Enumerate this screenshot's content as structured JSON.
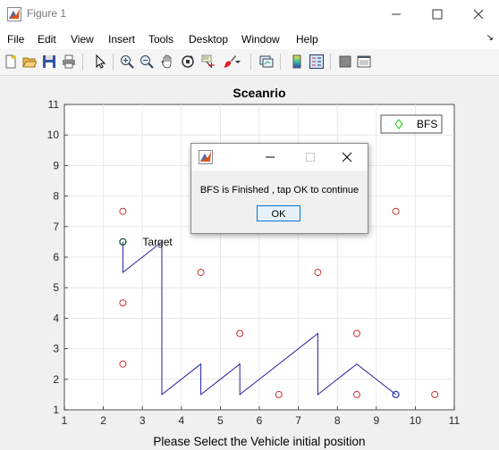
{
  "window": {
    "title": "Figure 1"
  },
  "menu": {
    "items": [
      "File",
      "Edit",
      "View",
      "Insert",
      "Tools",
      "Desktop",
      "Window",
      "Help"
    ],
    "overflow_icon": "chevron-icon"
  },
  "toolbar": {
    "icons": [
      "new-figure-icon",
      "open-file-icon",
      "save-icon",
      "print-icon",
      "pointer-icon",
      "zoom-in-icon",
      "zoom-out-icon",
      "pan-icon",
      "rotate-3d-icon",
      "data-cursor-icon",
      "brush-icon",
      "link-plot-icon",
      "colorbar-icon",
      "legend-icon",
      "hide-plot-tools-icon",
      "show-plot-tools-icon"
    ]
  },
  "chart_data": {
    "type": "scatter",
    "title": "Sceanrio",
    "xlabel": "Please Select the Vehicle initial position",
    "ylabel": "",
    "xlim": [
      1,
      11
    ],
    "ylim": [
      1,
      11
    ],
    "xticks": [
      1,
      2,
      3,
      4,
      5,
      6,
      7,
      8,
      9,
      10,
      11
    ],
    "yticks": [
      1,
      2,
      3,
      4,
      5,
      6,
      7,
      8,
      9,
      10,
      11
    ],
    "grid": true,
    "legend": {
      "entries": [
        "BFS"
      ],
      "location": "top-right"
    },
    "obstacles": {
      "x": [
        2.5,
        2.5,
        2.5,
        4.5,
        5.5,
        6.5,
        7.5,
        8.5,
        8.5,
        9.5,
        10.5
      ],
      "y": [
        7.5,
        4.5,
        2.5,
        5.5,
        3.5,
        1.5,
        5.5,
        3.5,
        1.5,
        7.5,
        1.5
      ],
      "color": "#cc3333"
    },
    "path": {
      "name": "BFS",
      "x": [
        2.5,
        2.5,
        3.5,
        3.5,
        4.5,
        4.5,
        5.5,
        5.5,
        7.5,
        7.5,
        8.5,
        9.5
      ],
      "y": [
        6.5,
        5.5,
        6.5,
        1.5,
        2.5,
        1.5,
        2.5,
        1.5,
        3.5,
        1.5,
        2.5,
        1.5
      ],
      "color": "#2020a0"
    },
    "target": {
      "x": 2.5,
      "y": 6.5,
      "label": "Target",
      "color": "#1a5c2a"
    },
    "vehicle": {
      "x": 9.5,
      "y": 1.5,
      "color": "#3344aa"
    },
    "legend_marker_color": "#00cc00"
  },
  "dialog": {
    "message": "BFS is Finished , tap OK to continue",
    "ok_label": "OK"
  }
}
